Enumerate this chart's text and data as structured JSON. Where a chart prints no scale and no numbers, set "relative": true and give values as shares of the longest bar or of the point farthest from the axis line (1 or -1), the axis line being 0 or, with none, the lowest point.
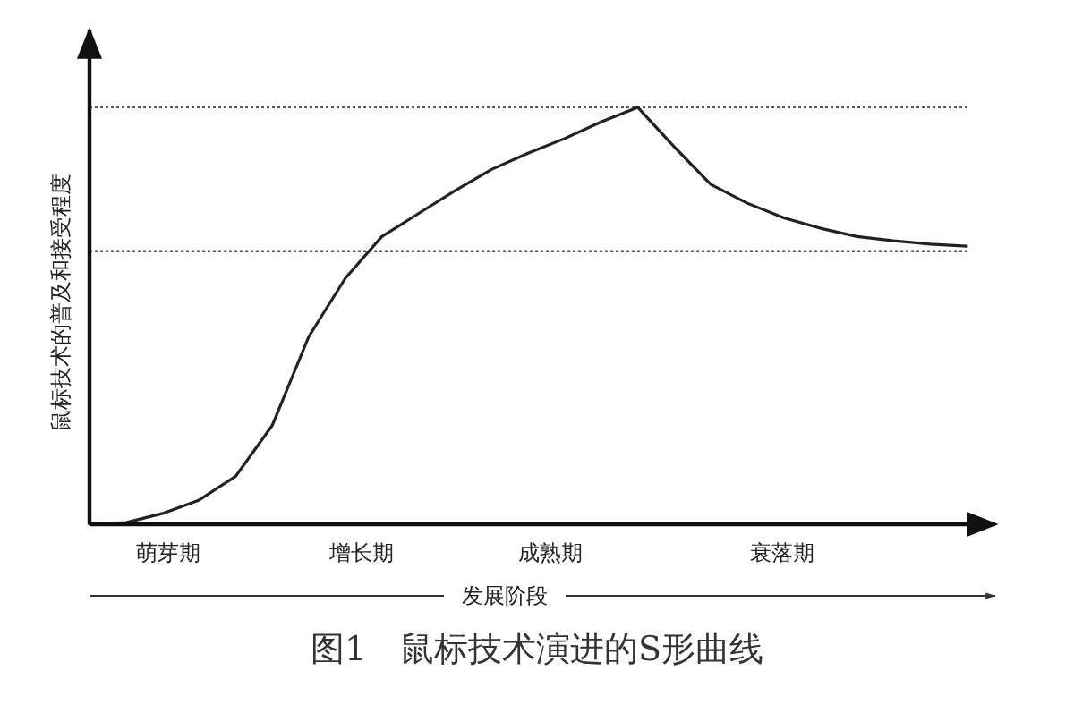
{
  "chart_data": {
    "type": "line",
    "relative": true,
    "title": "图1　鼠标技术演进的S形曲线",
    "xlabel": "发展阶段",
    "ylabel": "鼠标技术的普及和接受程度",
    "marker": "none",
    "line_style": "solid",
    "categories": [
      null,
      null,
      null,
      null,
      null,
      null,
      null,
      null,
      null,
      null,
      null,
      null,
      null,
      null,
      null,
      null,
      null,
      null,
      null,
      null,
      null,
      null,
      null,
      null,
      null
    ],
    "series": [
      {
        "color": "#222222",
        "values": [
          0,
          0.004,
          0.026,
          0.058,
          0.115,
          0.237,
          0.45,
          0.59,
          0.69,
          0.745,
          0.8,
          0.851,
          0.89,
          0.925,
          0.965,
          1,
          0.905,
          0.815,
          0.77,
          0.735,
          0.71,
          0.69,
          0.68,
          0.672,
          0.667
        ]
      }
    ],
    "ref_lines": [
      {
        "axis": "y",
        "value": 1,
        "line_style": "dotted",
        "color": "#555555"
      },
      {
        "axis": "y",
        "value": 0.655,
        "line_style": "dotted",
        "color": "#555555"
      }
    ],
    "annotations": [
      "萌芽期",
      "增长期",
      "成熟期",
      "衰落期"
    ]
  }
}
